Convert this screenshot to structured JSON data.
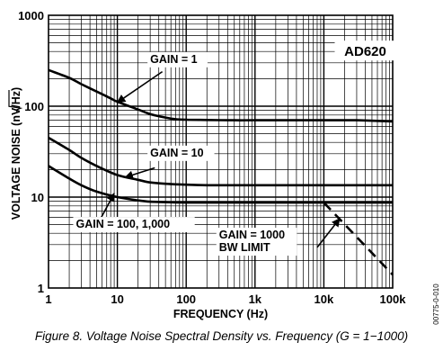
{
  "chart_data": {
    "type": "line",
    "title": "",
    "chart_label": "AD620",
    "xlabel": "FREQUENCY (Hz)",
    "ylabel_prefix": "VOLTAGE NOISE (nV/",
    "ylabel_radicand": "Hz",
    "ylabel_suffix": ")",
    "x_scale": "log",
    "y_scale": "log",
    "xlim": [
      1,
      100000
    ],
    "ylim": [
      1,
      1000
    ],
    "grid": true,
    "x_ticks": [
      {
        "value": 1,
        "label": "1"
      },
      {
        "value": 10,
        "label": "10"
      },
      {
        "value": 100,
        "label": "100"
      },
      {
        "value": 1000,
        "label": "1k"
      },
      {
        "value": 10000,
        "label": "10k"
      },
      {
        "value": 100000,
        "label": "100k"
      }
    ],
    "y_ticks": [
      {
        "value": 1,
        "label": "1"
      },
      {
        "value": 10,
        "label": "10"
      },
      {
        "value": 100,
        "label": "100"
      },
      {
        "value": 1000,
        "label": "1000"
      }
    ],
    "series": [
      {
        "name": "GAIN = 1",
        "style": "solid",
        "x": [
          1,
          2,
          3,
          5,
          8,
          10,
          20,
          30,
          50,
          70,
          100,
          200,
          500,
          1000,
          5000,
          10000,
          30000,
          100000
        ],
        "y": [
          250,
          205,
          175,
          145,
          122,
          112,
          92,
          82,
          75,
          72,
          71,
          70.5,
          70,
          70,
          70,
          70,
          70,
          68
        ]
      },
      {
        "name": "GAIN = 10",
        "style": "solid",
        "x": [
          1,
          2,
          3,
          5,
          10,
          20,
          30,
          50,
          100,
          200,
          500,
          1000,
          10000,
          100000
        ],
        "y": [
          45,
          33,
          27,
          22,
          17.5,
          15.5,
          14.5,
          14,
          13.7,
          13.5,
          13.5,
          13.5,
          13.5,
          13.5
        ]
      },
      {
        "name": "GAIN = 100, 1,000",
        "style": "solid",
        "x": [
          1,
          2,
          3,
          5,
          10,
          20,
          30,
          50,
          100,
          1000,
          10000,
          100000
        ],
        "y": [
          22,
          16,
          13.5,
          11.5,
          10,
          9.2,
          8.9,
          8.8,
          8.7,
          8.7,
          8.7,
          8.7
        ]
      },
      {
        "name": "GAIN = 1000 BW LIMIT",
        "style": "dashed",
        "x": [
          10000,
          100000
        ],
        "y": [
          8.7,
          1.4
        ]
      }
    ],
    "annotations": [
      {
        "lines": [
          "GAIN = 1"
        ]
      },
      {
        "lines": [
          "GAIN = 10"
        ]
      },
      {
        "lines": [
          "GAIN = 100, 1,000"
        ]
      },
      {
        "lines": [
          "GAIN = 1000",
          "BW LIMIT"
        ]
      }
    ]
  },
  "caption": "Figure 8. Voltage Noise Spectral Density vs. Frequency (G = 1−1000)",
  "figure_code": "00775-0-010"
}
